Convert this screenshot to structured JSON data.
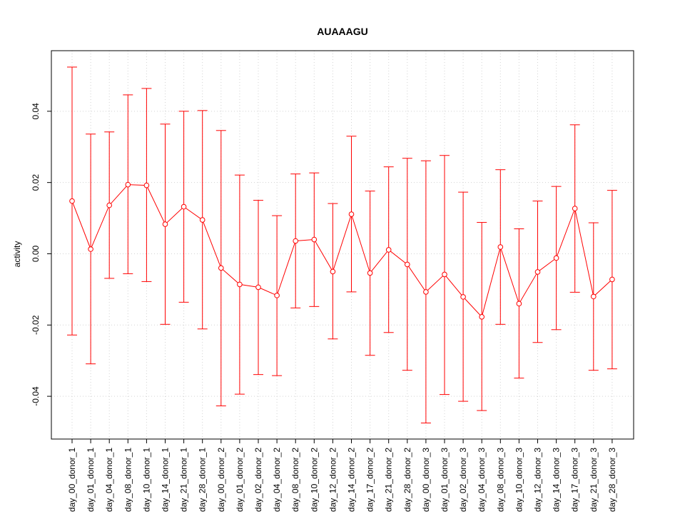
{
  "chart_data": {
    "type": "line",
    "title": "AUAAAGU",
    "xlabel": "",
    "ylabel": "activity",
    "ylim": [
      -0.052,
      0.057
    ],
    "y_ticks": [
      -0.04,
      -0.02,
      0.0,
      0.02,
      0.04
    ],
    "y_tick_labels": [
      "-0.04",
      "-0.02",
      "0.00",
      "0.02",
      "0.04"
    ],
    "grid": true,
    "colors": {
      "series": "#ff0000",
      "grid": "#d3d3d3",
      "axis": "#000000"
    },
    "categories": [
      "day_00_donor_1",
      "day_01_donor_1",
      "day_04_donor_1",
      "day_08_donor_1",
      "day_10_donor_1",
      "day_14_donor_1",
      "day_21_donor_1",
      "day_28_donor_1",
      "day_00_donor_2",
      "day_01_donor_2",
      "day_02_donor_2",
      "day_04_donor_2",
      "day_08_donor_2",
      "day_10_donor_2",
      "day_12_donor_2",
      "day_14_donor_2",
      "day_17_donor_2",
      "day_21_donor_2",
      "day_28_donor_2",
      "day_00_donor_3",
      "day_01_donor_3",
      "day_02_donor_3",
      "day_04_donor_3",
      "day_08_donor_3",
      "day_10_donor_3",
      "day_12_donor_3",
      "day_14_donor_3",
      "day_17_donor_3",
      "day_21_donor_3",
      "day_28_donor_3"
    ],
    "series": [
      {
        "values": [
          0.0148,
          0.0013,
          0.0136,
          0.0194,
          0.0192,
          0.0083,
          0.0132,
          0.0095,
          -0.004,
          -0.0086,
          -0.0094,
          -0.0117,
          0.0036,
          0.004,
          -0.005,
          0.0111,
          -0.0054,
          0.0011,
          -0.003,
          -0.0107,
          -0.0058,
          -0.0121,
          -0.0177,
          0.0019,
          -0.014,
          -0.0051,
          -0.0012,
          0.0127,
          -0.012,
          -0.0072
        ],
        "upper": [
          0.0524,
          0.0336,
          0.0342,
          0.0446,
          0.0464,
          0.0364,
          0.04,
          0.0402,
          0.0346,
          0.0221,
          0.015,
          0.0107,
          0.0224,
          0.0227,
          0.0141,
          0.033,
          0.0176,
          0.0244,
          0.0268,
          0.0261,
          0.0276,
          0.0173,
          0.0088,
          0.0236,
          0.007,
          0.0148,
          0.0189,
          0.0362,
          0.0087,
          0.0178
        ],
        "lower": [
          -0.0228,
          -0.0309,
          -0.0069,
          -0.0056,
          -0.0078,
          -0.0198,
          -0.0136,
          -0.0211,
          -0.0427,
          -0.0394,
          -0.0339,
          -0.0342,
          -0.0152,
          -0.0148,
          -0.0239,
          -0.0107,
          -0.0285,
          -0.0221,
          -0.0327,
          -0.0475,
          -0.0395,
          -0.0414,
          -0.044,
          -0.0198,
          -0.0349,
          -0.0249,
          -0.0213,
          -0.0108,
          -0.0327,
          -0.0323
        ]
      }
    ]
  }
}
